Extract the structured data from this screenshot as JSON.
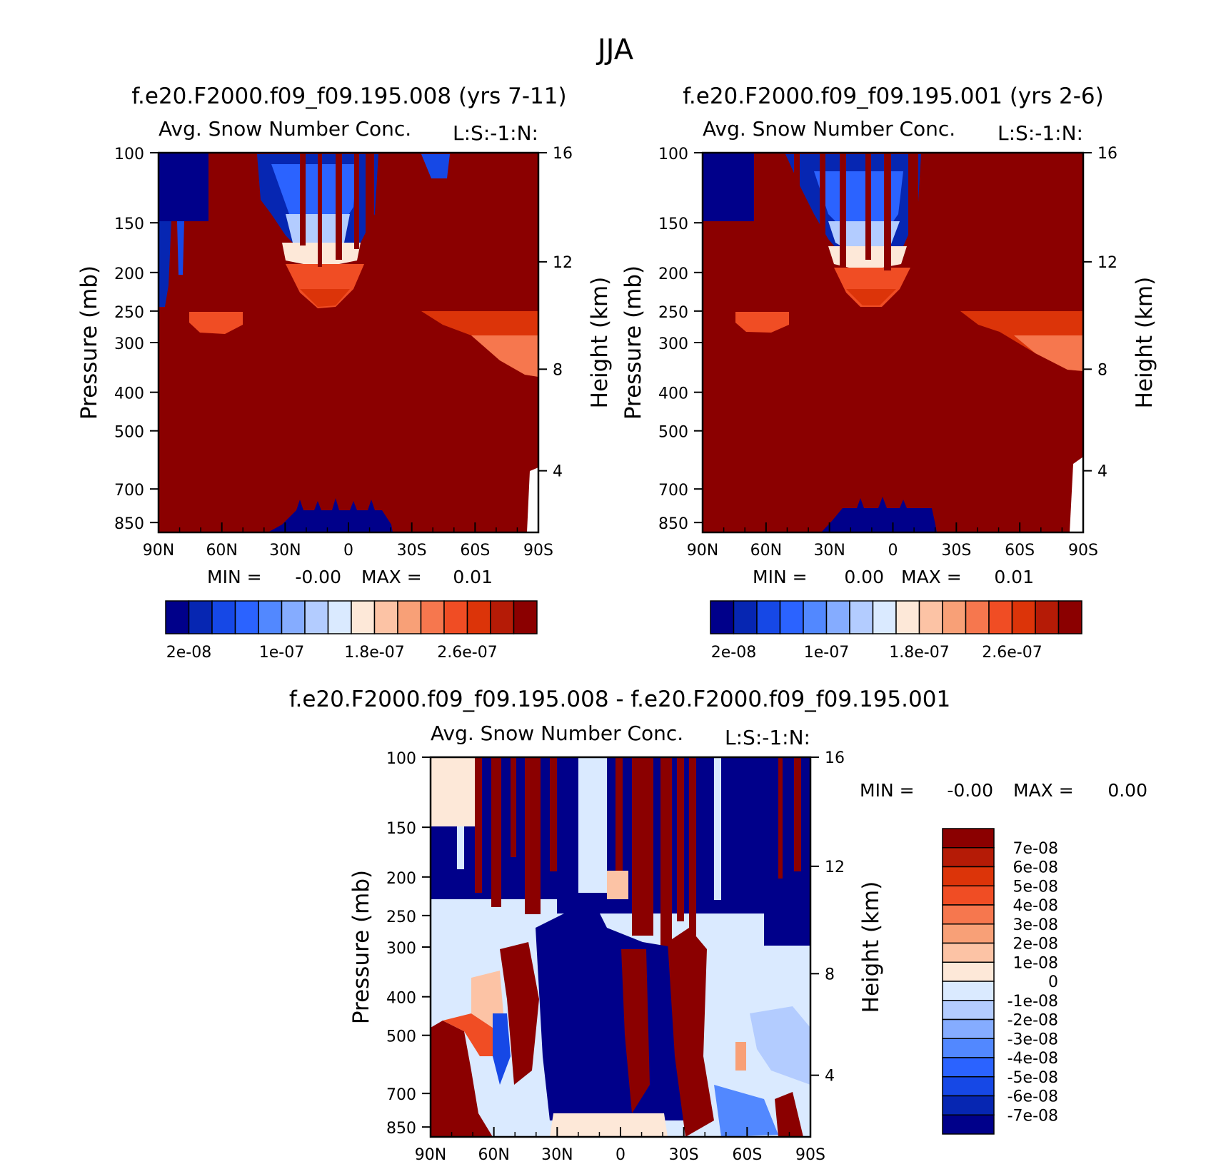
{
  "figure": {
    "title": "JJA"
  },
  "colors": {
    "seq_palette": [
      "#00008a",
      "#0626b2",
      "#1648e6",
      "#2b63ff",
      "#5288ff",
      "#85acff",
      "#b3ccff",
      "#daeaff",
      "#fde8d8",
      "#fcc3a5",
      "#f8a077",
      "#f6774e",
      "#f04d24",
      "#dc3409",
      "#b51b06",
      "#8b0000"
    ],
    "diff_palette": [
      "#00008a",
      "#0626b2",
      "#1648e6",
      "#2b63ff",
      "#5288ff",
      "#85acff",
      "#b3ccff",
      "#daeaff",
      "#fde8d8",
      "#fcc3a5",
      "#f8a077",
      "#f6774e",
      "#f04d24",
      "#dc3409",
      "#b51b06",
      "#8b0000"
    ],
    "background_field": "#8b0000",
    "diff_background": "#daeaff"
  },
  "chart_data": [
    {
      "type": "heatmap",
      "title": "f.e20.F2000.f09_f09.195.008 (yrs 7-11)",
      "subtitle": "Avg. Snow Number Conc.",
      "subtitle_right": "L:S:-1:N:",
      "ylabel": "Pressure (mb)",
      "ylabel_right": "Height (km)",
      "x_ticks": [
        "90N",
        "60N",
        "30N",
        "0",
        "30S",
        "60S",
        "90S"
      ],
      "y_ticks": [
        "100",
        "150",
        "200",
        "250",
        "300",
        "400",
        "500",
        "700",
        "850"
      ],
      "y_ticks_right": [
        "16",
        "12",
        "8",
        "4"
      ],
      "stats": {
        "min_label": "MIN =",
        "min": "-0.00",
        "max_label": "MAX =",
        "max": "0.01"
      },
      "colorbar_labels": [
        "2e-08",
        "1e-07",
        "1.8e-07",
        "2.6e-07"
      ],
      "y_scale": "log",
      "ylim": [
        100,
        900
      ],
      "xlim": [
        90,
        -90
      ]
    },
    {
      "type": "heatmap",
      "title": "f.e20.F2000.f09_f09.195.001 (yrs 2-6)",
      "subtitle": "Avg. Snow Number Conc.",
      "subtitle_right": "L:S:-1:N:",
      "ylabel": "Pressure (mb)",
      "ylabel_right": "Height (km)",
      "x_ticks": [
        "90N",
        "60N",
        "30N",
        "0",
        "30S",
        "60S",
        "90S"
      ],
      "y_ticks": [
        "100",
        "150",
        "200",
        "250",
        "300",
        "400",
        "500",
        "700",
        "850"
      ],
      "y_ticks_right": [
        "16",
        "12",
        "8",
        "4"
      ],
      "stats": {
        "min_label": "MIN =",
        "min": "0.00",
        "max_label": "MAX =",
        "max": "0.01"
      },
      "colorbar_labels": [
        "2e-08",
        "1e-07",
        "1.8e-07",
        "2.6e-07"
      ],
      "y_scale": "log",
      "ylim": [
        100,
        900
      ],
      "xlim": [
        90,
        -90
      ]
    },
    {
      "type": "heatmap",
      "title": "f.e20.F2000.f09_f09.195.008 - f.e20.F2000.f09_f09.195.001",
      "subtitle": "Avg. Snow Number Conc.",
      "subtitle_right": "L:S:-1:N:",
      "ylabel": "Pressure (mb)",
      "ylabel_right": "Height (km)",
      "x_ticks": [
        "90N",
        "60N",
        "30N",
        "0",
        "30S",
        "60S",
        "90S"
      ],
      "y_ticks": [
        "100",
        "150",
        "200",
        "250",
        "300",
        "400",
        "500",
        "700",
        "850"
      ],
      "y_ticks_right": [
        "16",
        "12",
        "8",
        "4"
      ],
      "stats": {
        "min_label": "MIN =",
        "min": "-0.00",
        "max_label": "MAX =",
        "max": "0.00"
      },
      "colorbar_labels": [
        "7e-08",
        "6e-08",
        "5e-08",
        "4e-08",
        "3e-08",
        "2e-08",
        "1e-08",
        "0",
        "-1e-08",
        "-2e-08",
        "-3e-08",
        "-4e-08",
        "-5e-08",
        "-6e-08",
        "-7e-08"
      ],
      "y_scale": "log",
      "ylim": [
        100,
        900
      ],
      "xlim": [
        90,
        -90
      ]
    }
  ]
}
